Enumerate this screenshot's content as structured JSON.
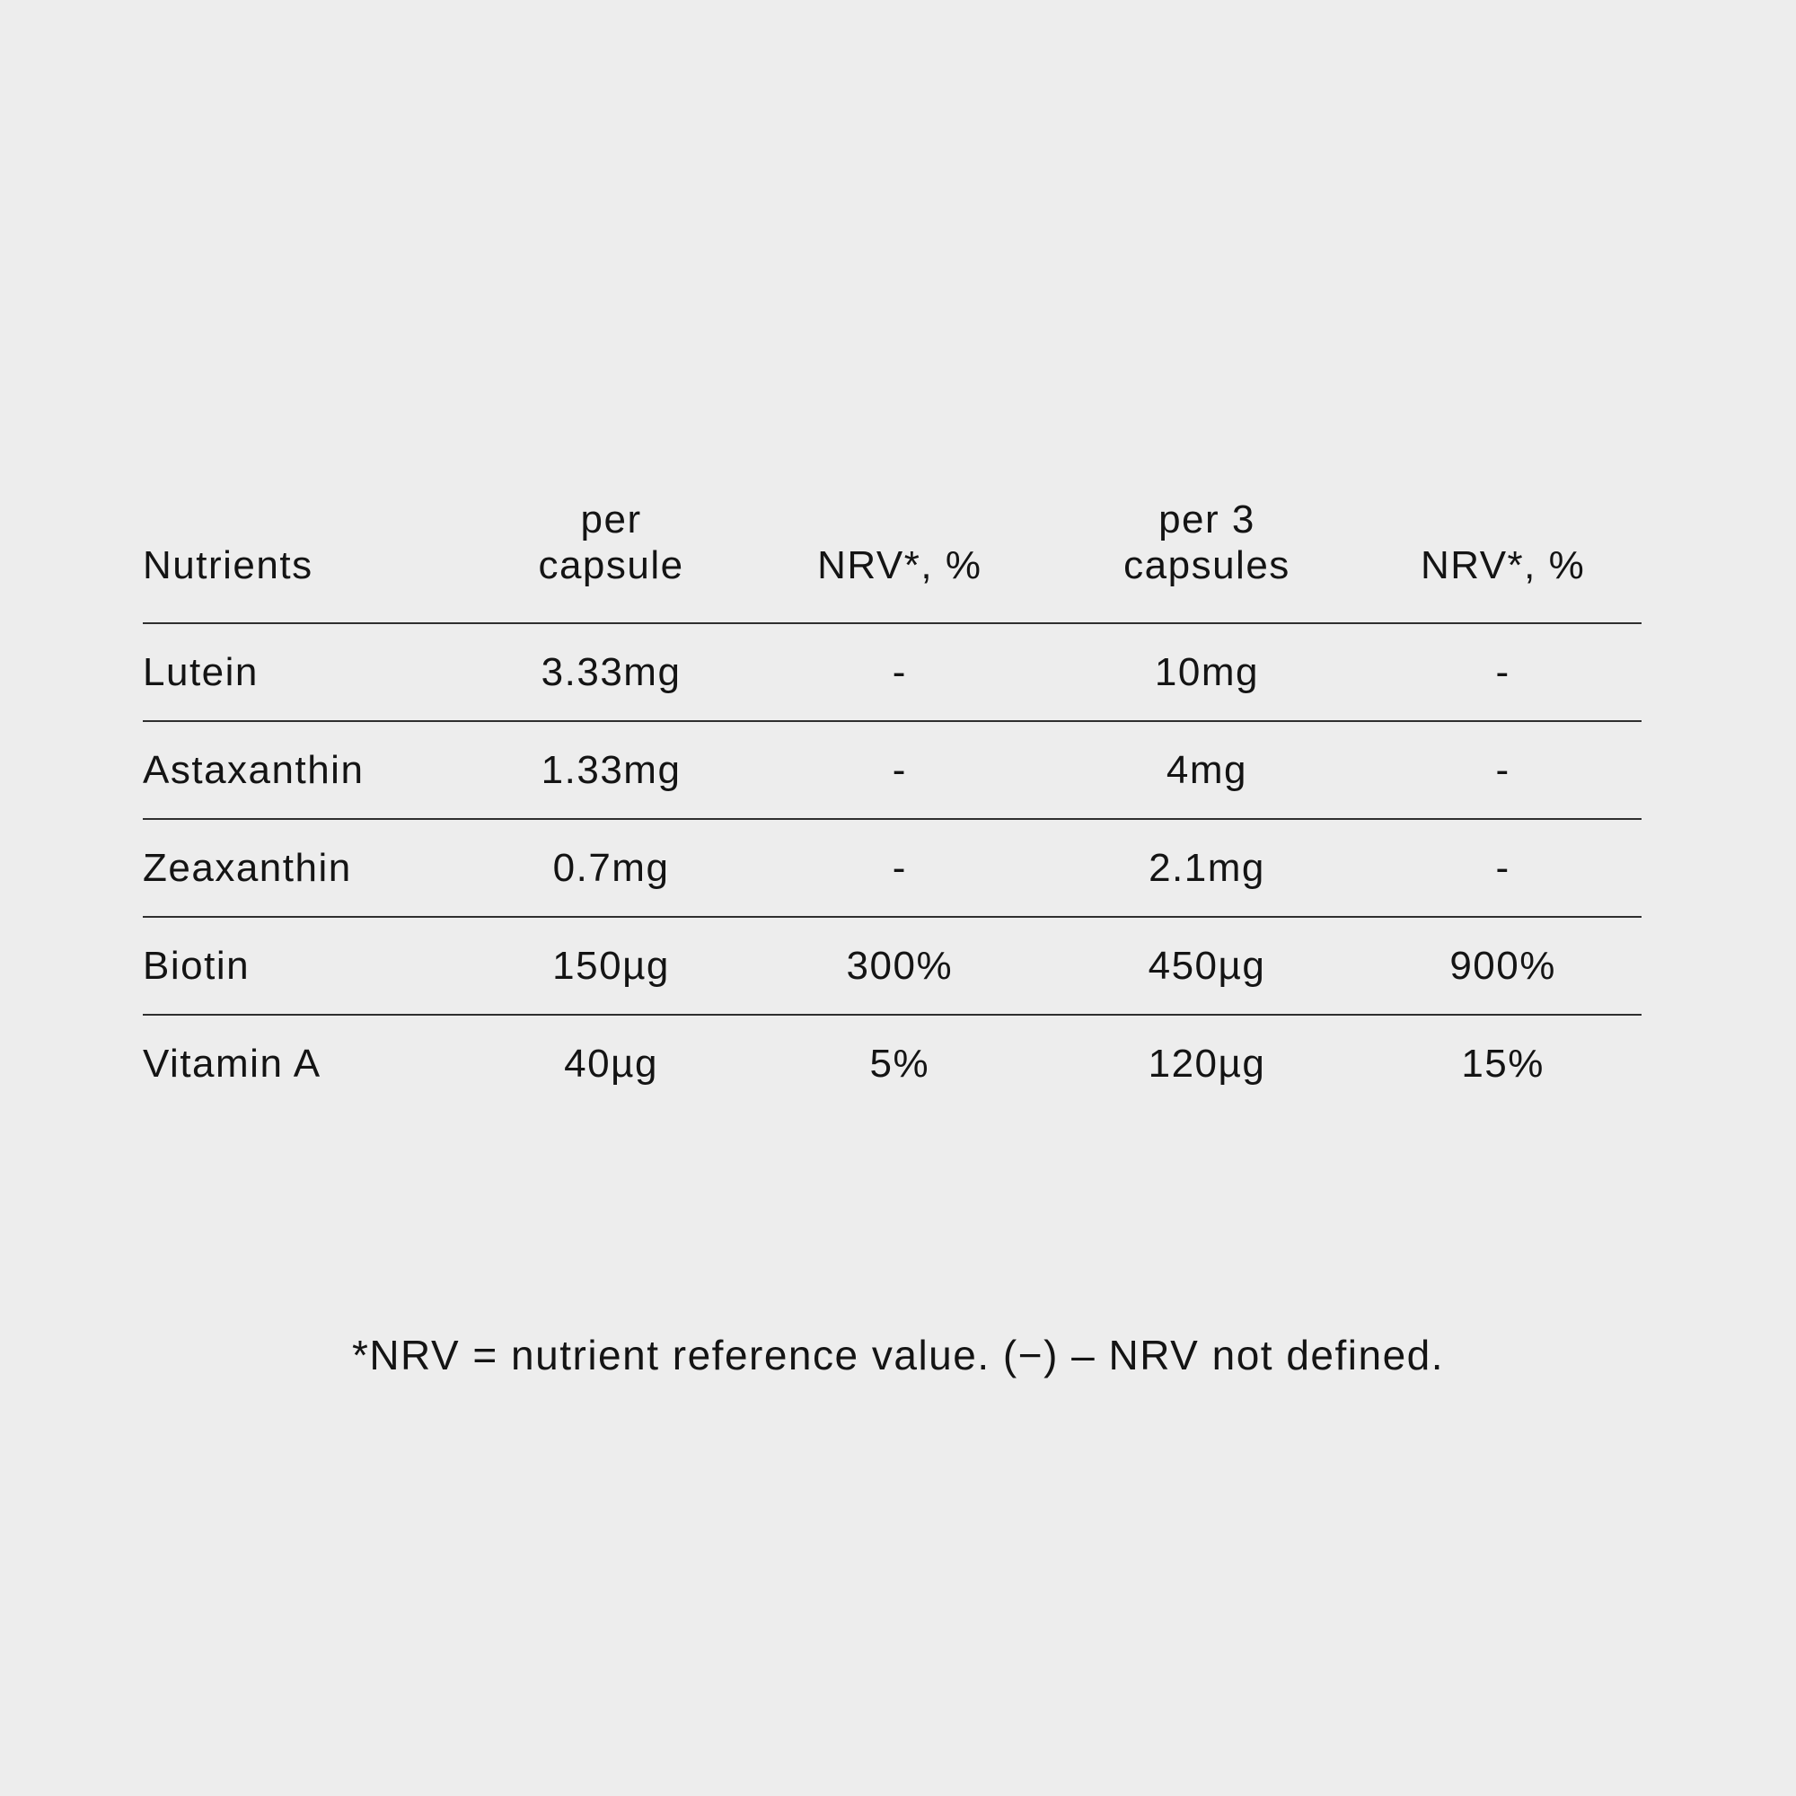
{
  "page": {
    "background_color": "#ededed",
    "text_color": "#141414",
    "rule_color": "#2f2f2f"
  },
  "table": {
    "headers": [
      "Nutrients",
      "per\ncapsule",
      "NRV*, %",
      "per 3\ncapsules",
      "NRV*, %"
    ],
    "rows": [
      {
        "cells": [
          "Lutein",
          "3.33mg",
          "-",
          "10mg",
          "-"
        ]
      },
      {
        "cells": [
          "Astaxanthin",
          "1.33mg",
          "-",
          "4mg",
          "-"
        ]
      },
      {
        "cells": [
          "Zeaxanthin",
          "0.7mg",
          "-",
          "2.1mg",
          "-"
        ]
      },
      {
        "cells": [
          "Biotin",
          "150µg",
          "300%",
          "450µg",
          "900%"
        ]
      },
      {
        "cells": [
          "Vitamin A",
          "40µg",
          "5%",
          "120µg",
          "15%"
        ]
      }
    ]
  },
  "footnote": "*NRV = nutrient reference value. (−) – NRV not defined."
}
